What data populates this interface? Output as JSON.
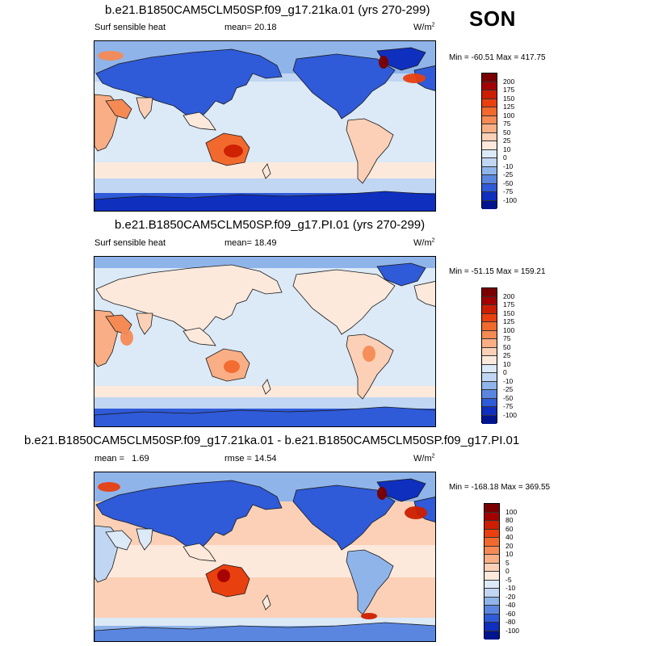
{
  "season": "SON",
  "panels": [
    {
      "title": "b.e21.B1850CAM5CLM50SP.f09_g17.21ka.01 (yrs 270-299)",
      "left_label": "Surf sensible heat",
      "stat_label": "mean=",
      "stat_value": "20.18",
      "units": "W/m",
      "units_sup": "2",
      "minmax": "Min = -60.51 Max = 417.75",
      "colorbar_levels": [
        "200",
        "175",
        "150",
        "125",
        "100",
        "75",
        "50",
        "25",
        "10",
        "0",
        "-10",
        "-25",
        "-50",
        "-75",
        "-100"
      ]
    },
    {
      "title": "b.e21.B1850CAM5CLM50SP.f09_g17.PI.01 (yrs 270-299)",
      "left_label": "Surf sensible heat",
      "stat_label": "mean=",
      "stat_value": "18.49",
      "units": "W/m",
      "units_sup": "2",
      "minmax": "Min = -51.15 Max = 159.21",
      "colorbar_levels": [
        "200",
        "175",
        "150",
        "125",
        "100",
        "75",
        "50",
        "25",
        "10",
        "0",
        "-10",
        "-25",
        "-50",
        "-75",
        "-100"
      ]
    },
    {
      "title": "b.e21.B1850CAM5CLM50SP.f09_g17.21ka.01 - b.e21.B1850CAM5CLM50SP.f09_g17.PI.01",
      "left_label": "mean =   1.69",
      "stat_label": "rmse =",
      "stat_value": "14.54",
      "units": "W/m",
      "units_sup": "2",
      "minmax": "Min = -168.18 Max = 369.55",
      "colorbar_levels": [
        "100",
        "80",
        "60",
        "40",
        "20",
        "10",
        "5",
        "0",
        "-5",
        "-10",
        "-20",
        "-40",
        "-60",
        "-80",
        "-100"
      ]
    }
  ],
  "colors": {
    "colorbar": [
      "#7a0000",
      "#a30000",
      "#cc1f00",
      "#e8400f",
      "#f2692e",
      "#f58a55",
      "#f9ae85",
      "#fbd0b6",
      "#fde9dc",
      "#dce9f7",
      "#c0d6f2",
      "#8fb4ea",
      "#5b86e0",
      "#2f5ad8",
      "#0f2fbf",
      "#00148f"
    ]
  }
}
